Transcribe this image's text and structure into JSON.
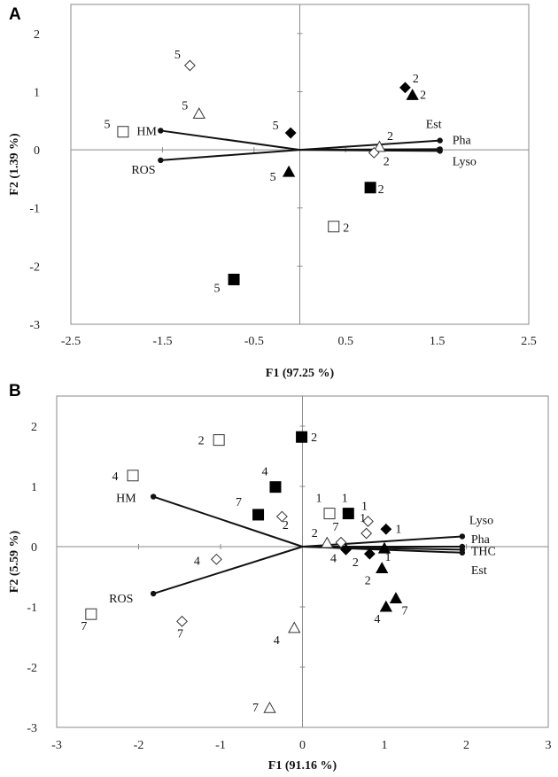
{
  "chart_data": [
    {
      "panel": "A",
      "type": "scatter",
      "title": "",
      "xlabel": "F1 (97.25 %)",
      "ylabel": "F2 (1.39 %)",
      "xlim": [
        -2.5,
        2.5
      ],
      "ylim": [
        -3,
        2.5
      ],
      "xticks": [
        "-2.5",
        "-1.5",
        "-0.5",
        "0.5",
        "1.5",
        "2.5"
      ],
      "xtick_values": [
        -2.5,
        -1.5,
        -0.5,
        0.5,
        1.5,
        2.5
      ],
      "yticks": [
        "-3",
        "-2",
        "-1",
        "0",
        "1",
        "2"
      ],
      "ytick_values": [
        -3,
        -2,
        -1,
        0,
        1,
        2
      ],
      "grid": false,
      "vectors": [
        {
          "name": "HM",
          "x": -1.52,
          "y": 0.33
        },
        {
          "name": "ROS",
          "x": -1.52,
          "y": -0.18
        },
        {
          "name": "Est",
          "x": 1.53,
          "y": 0.16
        },
        {
          "name": "Pha",
          "x": 1.53,
          "y": 0.01
        },
        {
          "name": "Lyso",
          "x": 1.53,
          "y": -0.02
        }
      ],
      "points": [
        {
          "marker": "diamond-open",
          "x": -1.2,
          "y": 1.45,
          "label": "5"
        },
        {
          "marker": "triangle-open",
          "x": -1.1,
          "y": 0.62,
          "label": "5"
        },
        {
          "marker": "square-open",
          "x": -1.93,
          "y": 0.31,
          "label": "5"
        },
        {
          "marker": "diamond-filled",
          "x": -0.1,
          "y": 0.29,
          "label": "5"
        },
        {
          "marker": "triangle-filled",
          "x": -0.12,
          "y": -0.38,
          "label": "5"
        },
        {
          "marker": "square-filled",
          "x": -0.72,
          "y": -2.23,
          "label": "5"
        },
        {
          "marker": "diamond-filled",
          "x": 1.15,
          "y": 1.07,
          "label": "2"
        },
        {
          "marker": "triangle-filled",
          "x": 1.23,
          "y": 0.94,
          "label": "2"
        },
        {
          "marker": "triangle-open",
          "x": 0.87,
          "y": 0.05,
          "label": "2"
        },
        {
          "marker": "diamond-open",
          "x": 0.81,
          "y": -0.05,
          "label": "2"
        },
        {
          "marker": "square-filled",
          "x": 0.77,
          "y": -0.65,
          "label": "2"
        },
        {
          "marker": "square-open",
          "x": 0.37,
          "y": -1.32,
          "label": "2"
        }
      ]
    },
    {
      "panel": "B",
      "type": "scatter",
      "title": "",
      "xlabel": "F1 (91.16 %)",
      "ylabel": "F2 (5.59 %)",
      "xlim": [
        -3,
        3
      ],
      "ylim": [
        -3,
        2.5
      ],
      "xticks": [
        "-3",
        "-2",
        "-1",
        "0",
        "1",
        "2",
        "3"
      ],
      "xtick_values": [
        -3,
        -2,
        -1,
        0,
        1,
        2,
        3
      ],
      "yticks": [
        "-3",
        "-2",
        "-1",
        "0",
        "1",
        "2"
      ],
      "ytick_values": [
        -3,
        -2,
        -1,
        0,
        1,
        2
      ],
      "grid": false,
      "vectors": [
        {
          "name": "HM",
          "x": -1.82,
          "y": 0.83
        },
        {
          "name": "ROS",
          "x": -1.82,
          "y": -0.78
        },
        {
          "name": "Lyso",
          "x": 1.95,
          "y": 0.17
        },
        {
          "name": "Pha",
          "x": 1.95,
          "y": 0.0
        },
        {
          "name": "THC",
          "x": 1.95,
          "y": -0.05
        },
        {
          "name": "Est",
          "x": 1.95,
          "y": -0.1
        }
      ],
      "points": [
        {
          "marker": "square-open",
          "x": -1.02,
          "y": 1.77,
          "label": "2"
        },
        {
          "marker": "square-filled",
          "x": -0.01,
          "y": 1.82,
          "label": "2"
        },
        {
          "marker": "square-open",
          "x": -2.07,
          "y": 1.18,
          "label": "4"
        },
        {
          "marker": "square-filled",
          "x": -0.33,
          "y": 0.99,
          "label": "4"
        },
        {
          "marker": "square-filled",
          "x": -0.54,
          "y": 0.53,
          "label": "7"
        },
        {
          "marker": "diamond-open",
          "x": -0.25,
          "y": 0.5,
          "label": "2"
        },
        {
          "marker": "square-open",
          "x": 0.33,
          "y": 0.55,
          "label": "1"
        },
        {
          "marker": "square-filled",
          "x": 0.56,
          "y": 0.55,
          "label": "1"
        },
        {
          "marker": "diamond-open",
          "x": 0.8,
          "y": 0.42,
          "label": "1"
        },
        {
          "marker": "diamond-filled",
          "x": 1.02,
          "y": 0.29,
          "label": "1"
        },
        {
          "marker": "diamond-open",
          "x": 0.78,
          "y": 0.22,
          "label": "1"
        },
        {
          "marker": "triangle-open",
          "x": 0.3,
          "y": 0.06,
          "label": "2"
        },
        {
          "marker": "diamond-open",
          "x": 0.47,
          "y": 0.07,
          "label": "7"
        },
        {
          "marker": "diamond-filled",
          "x": 0.53,
          "y": -0.05,
          "label": "4"
        },
        {
          "marker": "diamond-filled",
          "x": 0.82,
          "y": -0.12,
          "label": "2"
        },
        {
          "marker": "triangle-filled",
          "x": 0.97,
          "y": -0.36,
          "label": "2"
        },
        {
          "marker": "triangle-filled",
          "x": 1.0,
          "y": -0.03,
          "label": "1"
        },
        {
          "marker": "triangle-filled",
          "x": 1.14,
          "y": -0.86,
          "label": "7"
        },
        {
          "marker": "triangle-filled",
          "x": 1.02,
          "y": -1.0,
          "label": "4"
        },
        {
          "marker": "diamond-open",
          "x": -1.05,
          "y": -0.21,
          "label": "4"
        },
        {
          "marker": "square-open",
          "x": -2.58,
          "y": -1.12,
          "label": "7"
        },
        {
          "marker": "diamond-open",
          "x": -1.47,
          "y": -1.24,
          "label": "7"
        },
        {
          "marker": "triangle-open",
          "x": -0.1,
          "y": -1.35,
          "label": "4"
        },
        {
          "marker": "triangle-open",
          "x": -0.4,
          "y": -2.68,
          "label": "7"
        }
      ]
    }
  ]
}
